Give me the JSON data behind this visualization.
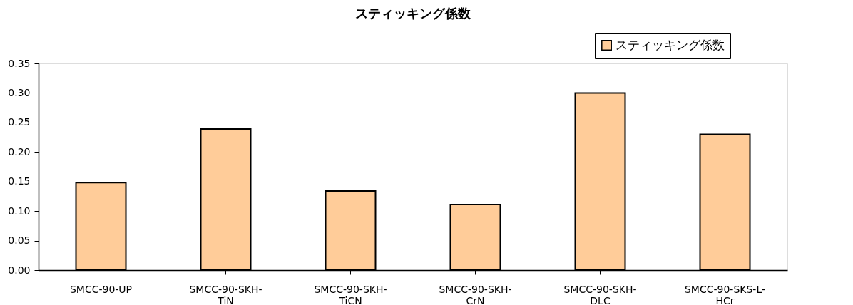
{
  "chart_data": {
    "type": "bar",
    "title": "スティッキング係数",
    "categories": [
      "SMCC-90-UP",
      "SMCC-90-SKH-\nTiN",
      "SMCC-90-SKH-\nTiCN",
      "SMCC-90-SKH-\nCrN",
      "SMCC-90-SKH-\nDLC",
      "SMCC-90-SKS-L-\nHCr"
    ],
    "series": [
      {
        "name": "スティッキング係数",
        "color": "#ffcc99",
        "values": [
          0.148,
          0.239,
          0.134,
          0.111,
          0.3,
          0.23
        ]
      }
    ],
    "ylim": [
      0,
      0.35
    ],
    "yticks": [
      {
        "value": 0,
        "label": "0.00"
      },
      {
        "value": 0.05,
        "label": "0.05"
      },
      {
        "value": 0.1,
        "label": "0.10"
      },
      {
        "value": 0.15,
        "label": "0.15"
      },
      {
        "value": 0.2,
        "label": "0.20"
      },
      {
        "value": 0.25,
        "label": "0.25"
      },
      {
        "value": 0.3,
        "label": "0.30"
      },
      {
        "value": 0.35,
        "label": "0.35"
      }
    ],
    "grid": false,
    "legend": "top right"
  }
}
